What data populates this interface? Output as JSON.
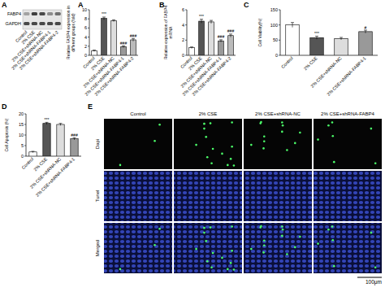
{
  "chart_data": [
    {
      "panel": "A",
      "type": "bar",
      "y_label": [
        "Relative FABP4 expression in",
        "different groups (fold)"
      ],
      "categories": [
        "Control",
        "2% CSE",
        "2% CSE+shRNA-NC",
        "2% CSE+shRNA-FABP4-1",
        "2% CSE+shRNA-FABP4-2"
      ],
      "values": [
        1,
        8.1,
        7.6,
        1.9,
        3.4
      ],
      "errors": [
        0.15,
        0.3,
        0.2,
        0.2,
        0.3
      ],
      "significance": [
        null,
        "***",
        null,
        "###",
        "###"
      ],
      "colors": [
        "#ffffff",
        "#555555",
        "#dddddd",
        "#999999",
        "#bbbbbb"
      ],
      "ylim": [
        0,
        10
      ],
      "yticks": [
        0,
        2,
        4,
        6,
        8,
        10
      ]
    },
    {
      "panel": "B",
      "type": "bar",
      "y_label": [
        "Relative expression of FABP4",
        "mRNA"
      ],
      "categories": [
        "Control",
        "2% CSE",
        "2% CSE+shRNA-NC",
        "2% CSE+shRNA-FABP4-1",
        "2% CSE+shRNA-FABP4-2"
      ],
      "values": [
        1,
        4.5,
        4.4,
        1.9,
        2.6
      ],
      "errors": [
        0.1,
        0.25,
        0.2,
        0.15,
        0.2
      ],
      "significance": [
        null,
        "***",
        null,
        "###",
        "###"
      ],
      "colors": [
        "#ffffff",
        "#555555",
        "#dddddd",
        "#999999",
        "#bbbbbb"
      ],
      "ylim": [
        0,
        6
      ],
      "yticks": [
        0,
        2,
        4,
        6
      ]
    },
    {
      "panel": "C",
      "type": "bar",
      "y_label": [
        "Cell Viability(%)"
      ],
      "categories": [
        "Control",
        "2% CSE",
        "2% CSE+shRNA-NC",
        "2% CSE+shRNA-FABP4-1"
      ],
      "values": [
        100,
        58,
        55,
        78
      ],
      "errors": [
        8,
        5,
        4,
        5
      ],
      "significance": [
        null,
        "***",
        null,
        "#"
      ],
      "colors": [
        "#ffffff",
        "#555555",
        "#dddddd",
        "#999999"
      ],
      "ylim": [
        0,
        150
      ],
      "yticks": [
        0,
        50,
        100,
        150
      ]
    },
    {
      "panel": "D",
      "type": "bar",
      "y_label": [
        "Cell Apoptosis (%)"
      ],
      "categories": [
        "Control",
        "2% CSE",
        "2% CSE+shRNA-NC",
        "2% CSE+shRNA-FABP4-1"
      ],
      "values": [
        2,
        15.5,
        15,
        8.2
      ],
      "errors": [
        0.3,
        0.5,
        0.5,
        0.5
      ],
      "significance": [
        null,
        "***",
        null,
        "###"
      ],
      "colors": [
        "#ffffff",
        "#555555",
        "#dddddd",
        "#999999"
      ],
      "ylim": [
        0,
        20
      ],
      "yticks": [
        0,
        5,
        10,
        15,
        20
      ]
    }
  ],
  "blot": {
    "panel": "A",
    "bands": [
      "FABP4",
      "GAPDH"
    ],
    "lanes": [
      "Control",
      "2% CSE",
      "2% CSE+shRNA-NC",
      "2% CSE+shRNA-FABP4-1",
      "2% CSE+shRNA-FABP4-2"
    ]
  },
  "tunel": {
    "panel": "E",
    "columns": [
      "Control",
      "2% CSE",
      "2% CSE+shRNA-NC",
      "2% CSE+shRNA-FABP4"
    ],
    "rows": [
      "Dapi",
      "Tunel",
      "Merged"
    ],
    "scale_bar": "100μm"
  }
}
